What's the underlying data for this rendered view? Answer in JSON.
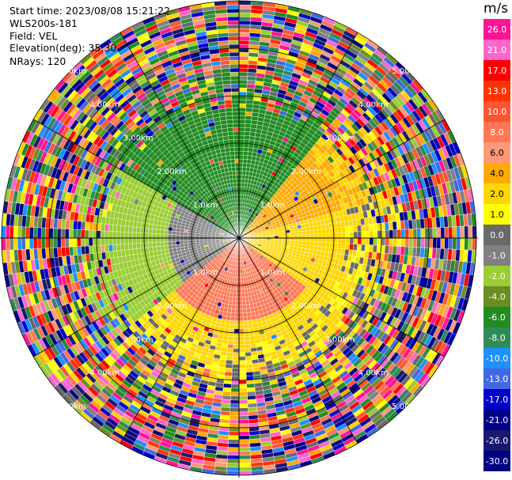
{
  "header": {
    "start_time": "Start time: 2023/08/08 15:21:22",
    "instrument": "WLS200s-181",
    "field": "Field: VEL",
    "elevation": "Elevation(deg): 35.30",
    "nrays": "NRays: 120"
  },
  "chart_data": {
    "type": "heatmap",
    "projection": "polar (PPI scan)",
    "field": "VEL",
    "nrays": 120,
    "range_ring_labels": [
      "1.0km",
      "2.00km",
      "3.00km",
      "4.00km",
      "5.00km"
    ],
    "colorbar": {
      "unit": "m/s",
      "ticks": [
        "26.0",
        "21.0",
        "17.0",
        "13.0",
        "10.0",
        "8.0",
        "6.0",
        "4.0",
        "2.0",
        "1.0",
        "0.0",
        "-1.0",
        "-2.0",
        "-4.0",
        "-6.0",
        "-8.0",
        "-10.0",
        "-13.0",
        "-17.0",
        "-21.0",
        "-26.0",
        "-30.0"
      ],
      "colors": [
        "#ff1493",
        "#ff66cc",
        "#ff0000",
        "#ff3300",
        "#ff5533",
        "#ff7755",
        "#ff9977",
        "#ffaa00",
        "#ffd700",
        "#ffff00",
        "#696969",
        "#808080",
        "#9acd32",
        "#6b8e23",
        "#228b22",
        "#2e8b57",
        "#1e90ff",
        "#4169e1",
        "#0000cd",
        "#00008b",
        "#191970",
        "#000080"
      ]
    },
    "velocity_regions": [
      {
        "direction": "north-west (near)",
        "velocity_ms": -6.0
      },
      {
        "direction": "west (near)",
        "velocity_ms": -2.0
      },
      {
        "direction": "east (near)",
        "velocity_ms": 2.0
      },
      {
        "direction": "south (near)",
        "velocity_ms": 8.0
      },
      {
        "direction": "north-east (near)",
        "velocity_ms": 4.0
      },
      {
        "direction": "far range",
        "velocity_ms": "noise"
      }
    ]
  }
}
